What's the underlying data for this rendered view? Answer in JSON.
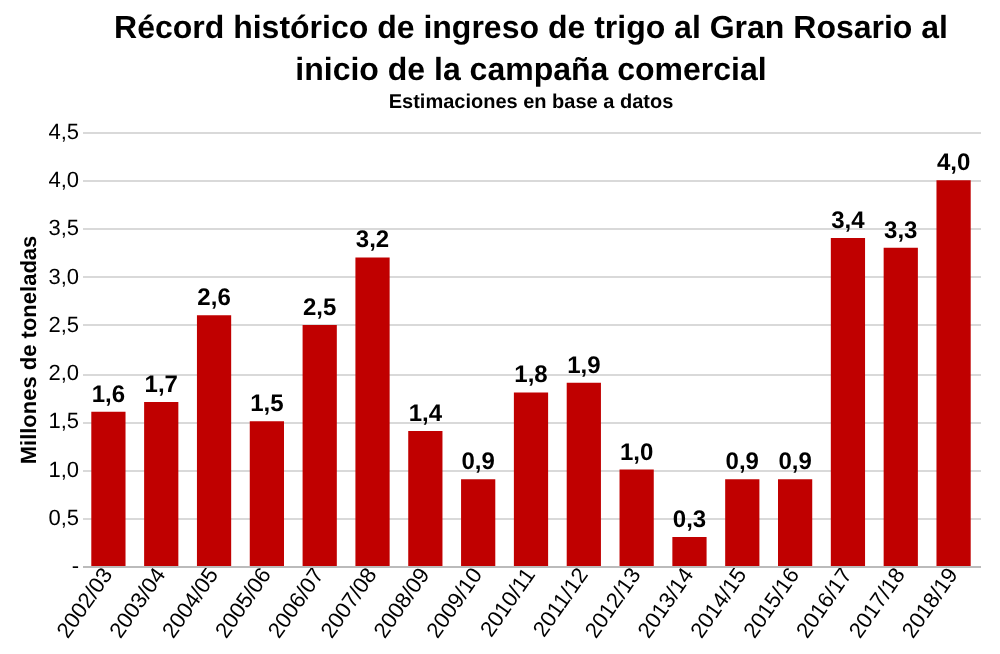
{
  "chart_data": {
    "type": "bar",
    "title": "Récord histórico de ingreso de trigo al Gran Rosario al inicio de la campaña comercial",
    "subtitle": "Estimaciones en base a datos",
    "ylabel": "Millones de toneladas",
    "categories": [
      "2002/03",
      "2003/04",
      "2004/05",
      "2005/06",
      "2006/07",
      "2007/08",
      "2008/09",
      "2009/10",
      "2010/11",
      "2011/12",
      "2012/13",
      "2013/14",
      "2014/15",
      "2015/16",
      "2016/17",
      "2017/18",
      "2018/19"
    ],
    "values": [
      1.6,
      1.7,
      2.6,
      1.5,
      2.5,
      3.2,
      1.4,
      0.9,
      1.8,
      1.9,
      1.0,
      0.3,
      0.9,
      0.9,
      3.4,
      3.3,
      4.0
    ],
    "value_labels": [
      "1,6",
      "1,7",
      "2,6",
      "1,5",
      "2,5",
      "3,2",
      "1,4",
      "0,9",
      "1,8",
      "1,9",
      "1,0",
      "0,3",
      "0,9",
      "0,9",
      "3,4",
      "3,3",
      "4,0"
    ],
    "color": "#c00000",
    "ylim": [
      0,
      4.5
    ],
    "yticks": [
      {
        "value": 0,
        "label": "-"
      },
      {
        "value": 0.5,
        "label": "0,5"
      },
      {
        "value": 1,
        "label": "1,0"
      },
      {
        "value": 1.5,
        "label": "1,5"
      },
      {
        "value": 2,
        "label": "2,0"
      },
      {
        "value": 2.5,
        "label": "2,5"
      },
      {
        "value": 3,
        "label": "3,0"
      },
      {
        "value": 3.5,
        "label": "3,5"
      },
      {
        "value": 4,
        "label": "4,0"
      },
      {
        "value": 4.5,
        "label": "4,5"
      }
    ],
    "grid": "y"
  }
}
